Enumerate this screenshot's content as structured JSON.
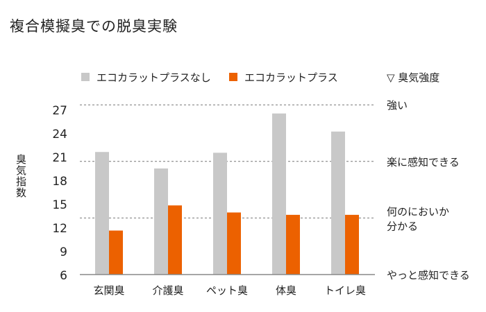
{
  "title": "複合模擬臭での脱臭実験",
  "chart_data": {
    "type": "bar",
    "title": "複合模擬臭での脱臭実験",
    "ylabel": "臭気指数",
    "categories": [
      "玄関臭",
      "介護臭",
      "ペット臭",
      "体臭",
      "トイレ臭"
    ],
    "series": [
      {
        "name": "エコカラットプラスなし",
        "color": "#c8c8c8",
        "values": [
          21.6,
          19.5,
          21.5,
          26.5,
          24.2
        ]
      },
      {
        "name": "エコカラットプラス",
        "color": "#ec6100",
        "values": [
          11.6,
          14.8,
          13.9,
          13.6,
          13.6
        ]
      }
    ],
    "yticks": [
      6,
      9,
      12,
      15,
      18,
      21,
      24,
      27
    ],
    "ylim": [
      6,
      27
    ],
    "grid": false,
    "legend_position": "top",
    "intensity_scale": {
      "legend": "▽ 臭気強度",
      "levels": [
        {
          "label": "強い",
          "value": 27.6,
          "dashed_line": true
        },
        {
          "label": "楽に感知できる",
          "value": 20.4,
          "dashed_line": true
        },
        {
          "label": "何のにおいか\n分かる",
          "value": 13.2,
          "dashed_line": true
        },
        {
          "label": "やっと感知できる",
          "value": 6,
          "dashed_line": false
        }
      ]
    }
  }
}
